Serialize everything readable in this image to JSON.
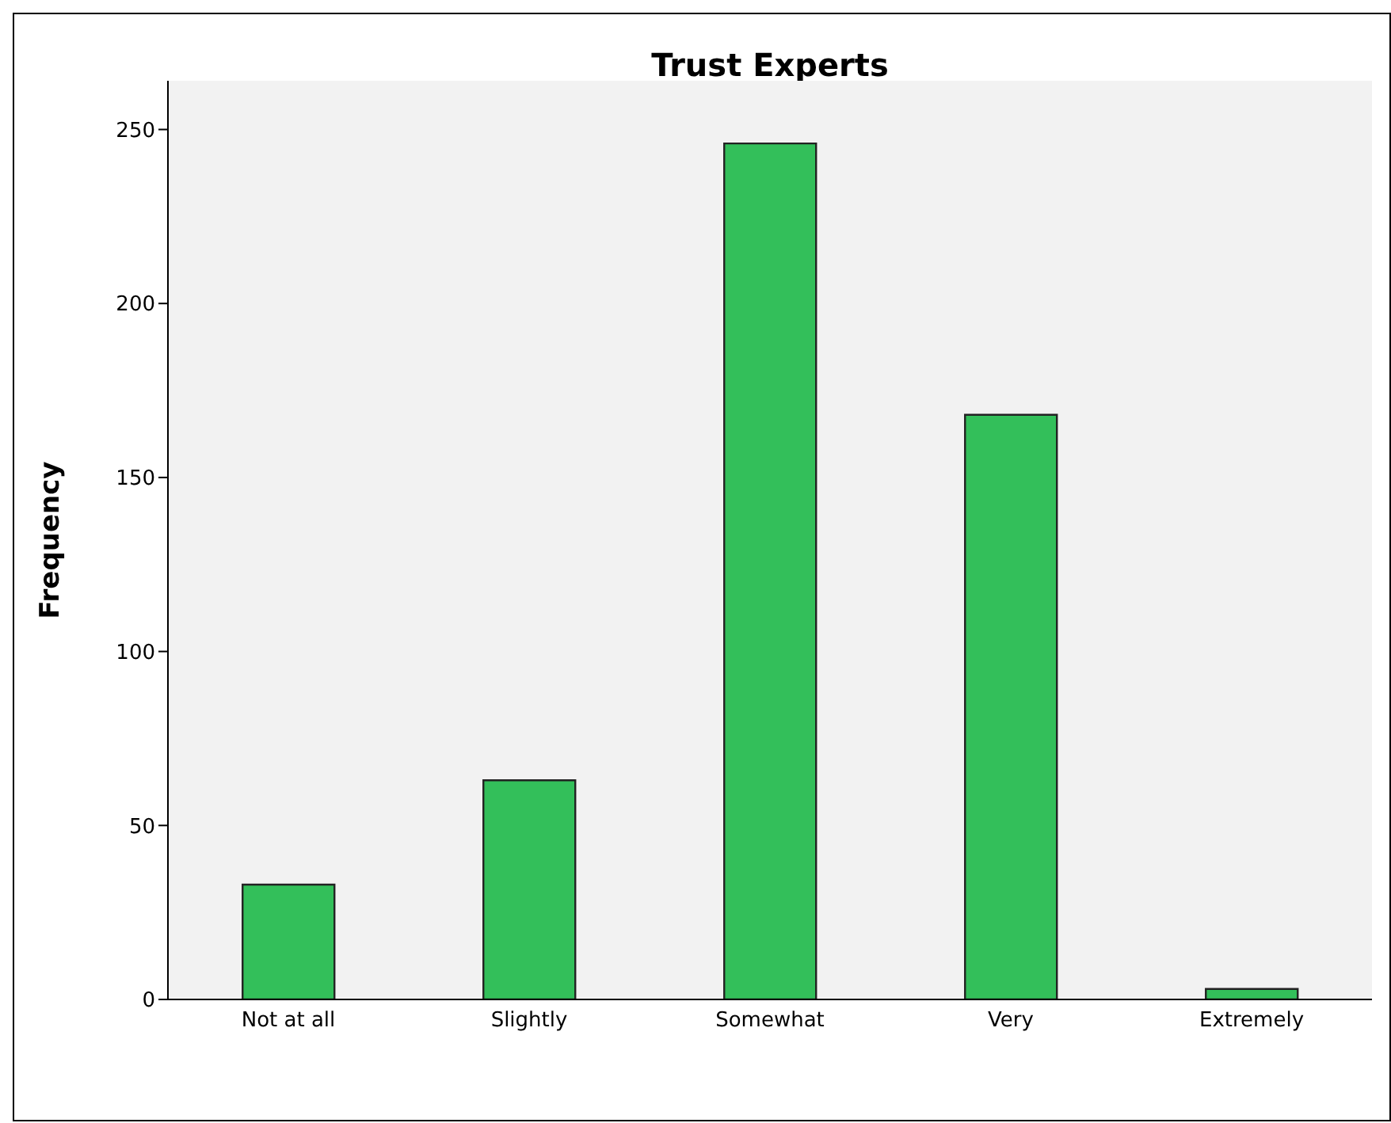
{
  "chart_data": {
    "type": "bar",
    "title": "Trust Experts",
    "ylabel": "Frequency",
    "categories": [
      "Not at all",
      "Slightly",
      "Somewhat",
      "Very",
      "Extremely"
    ],
    "values": [
      33,
      63,
      246,
      168,
      3
    ],
    "color": "#33bf5a",
    "ylim": [
      0,
      264
    ],
    "yticks": [
      0,
      50,
      100,
      150,
      200,
      250
    ],
    "grid": false
  }
}
